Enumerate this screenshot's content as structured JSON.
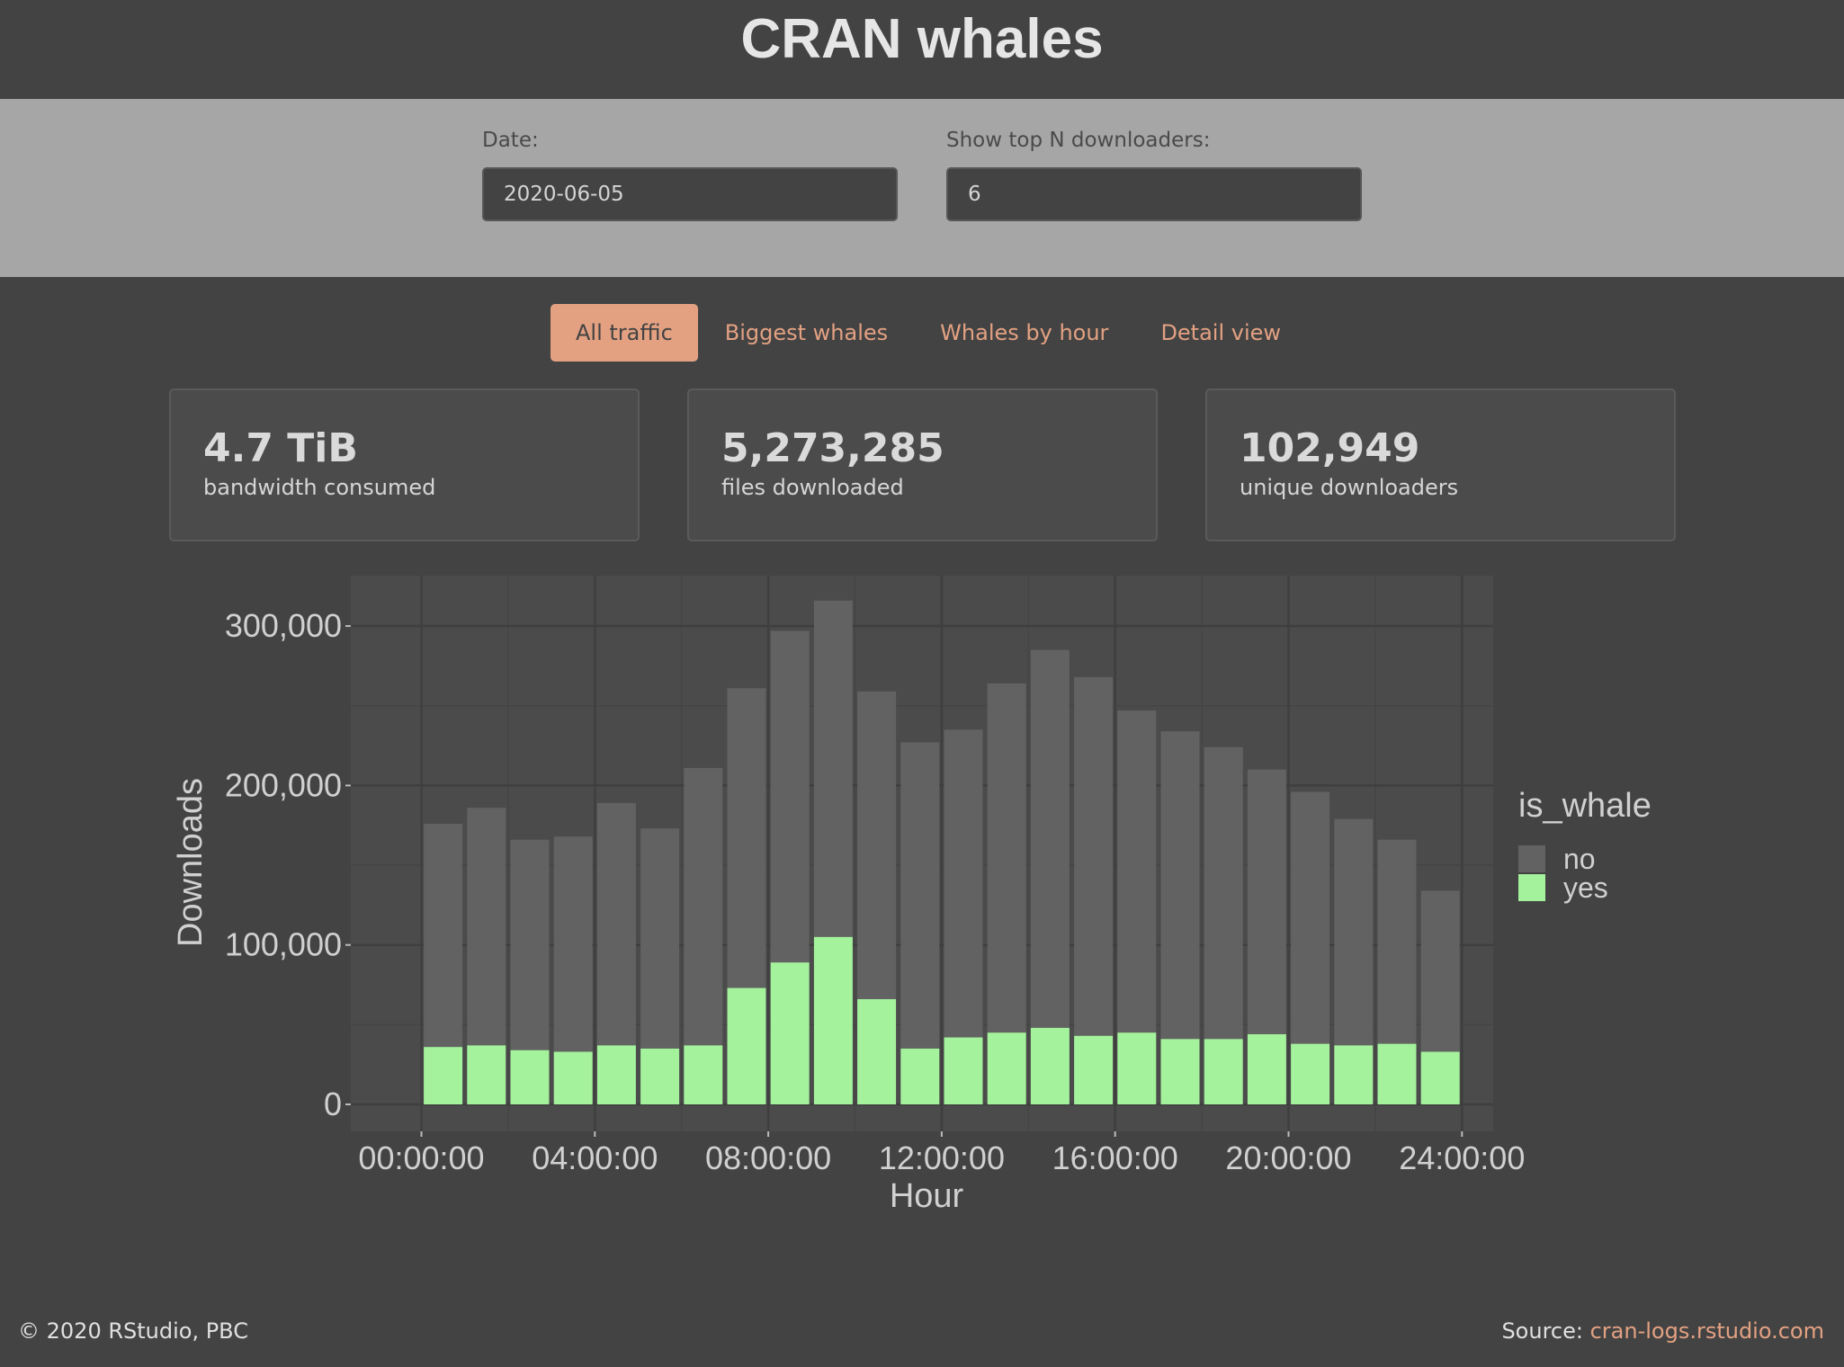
{
  "app": {
    "title": "CRAN whales"
  },
  "controls": {
    "date_label": "Date:",
    "date_value": "2020-06-05",
    "topn_label": "Show top N downloaders:",
    "topn_value": "6"
  },
  "tabs": [
    {
      "label": "All traffic",
      "active": true
    },
    {
      "label": "Biggest whales",
      "active": false
    },
    {
      "label": "Whales by hour",
      "active": false
    },
    {
      "label": "Detail view",
      "active": false
    }
  ],
  "stats": [
    {
      "value": "4.7 TiB",
      "label": "bandwidth consumed"
    },
    {
      "value": "5,273,285",
      "label": "files downloaded"
    },
    {
      "value": "102,949",
      "label": "unique downloaders"
    }
  ],
  "chart_data": {
    "type": "bar",
    "stacked": true,
    "xlabel": "Hour",
    "ylabel": "Downloads",
    "x_ticks": [
      "00:00:00",
      "04:00:00",
      "08:00:00",
      "12:00:00",
      "16:00:00",
      "20:00:00",
      "24:00:00"
    ],
    "y_ticks": [
      "0",
      "100,000",
      "200,000",
      "300,000"
    ],
    "ylim": [
      0,
      330000
    ],
    "grid": true,
    "legend": {
      "title": "is_whale",
      "position": "right"
    },
    "categories": [
      "00:00",
      "01:00",
      "02:00",
      "03:00",
      "04:00",
      "05:00",
      "06:00",
      "07:00",
      "08:00",
      "09:00",
      "10:00",
      "11:00",
      "12:00",
      "13:00",
      "14:00",
      "15:00",
      "16:00",
      "17:00",
      "18:00",
      "19:00",
      "20:00",
      "21:00",
      "22:00",
      "23:00"
    ],
    "series": [
      {
        "name": "no",
        "color": "#626262",
        "values": [
          140000,
          149000,
          132000,
          135000,
          152000,
          138000,
          174000,
          188000,
          208000,
          211000,
          193000,
          192000,
          193000,
          219000,
          237000,
          225000,
          202000,
          193000,
          183000,
          166000,
          158000,
          142000,
          128000,
          101000
        ]
      },
      {
        "name": "yes",
        "color": "#a4f29c",
        "values": [
          36000,
          37000,
          34000,
          33000,
          37000,
          35000,
          37000,
          73000,
          89000,
          105000,
          66000,
          35000,
          42000,
          45000,
          48000,
          43000,
          45000,
          41000,
          41000,
          44000,
          38000,
          37000,
          38000,
          33000
        ]
      }
    ]
  },
  "footer": {
    "copyright": "© 2020 RStudio, PBC",
    "source_label": "Source: ",
    "source_link": "cran-logs.rstudio.com"
  }
}
